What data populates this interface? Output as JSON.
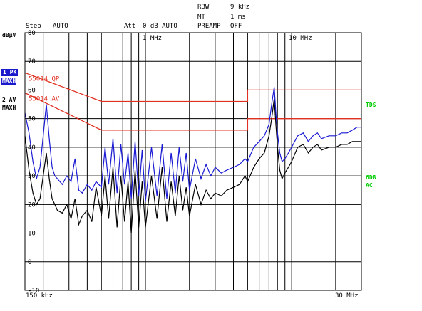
{
  "header": {
    "rbw_label": "RBW",
    "rbw_value": "9 kHz",
    "mt_label": "MT",
    "mt_value": "1 ms",
    "step_label": "Step",
    "step_value": "AUTO",
    "att_label": "Att",
    "att_value": "0 dB AUTO",
    "preamp_label": "PREAMP",
    "preamp_value": "OFF"
  },
  "colors": {
    "grid": "#000000",
    "trace_pk": "#1a1ad4",
    "trace_av": "#000000",
    "limit": "#e03020",
    "limit_text": "#e03020",
    "marker_box": "#1a1acc",
    "side_green": "#00cc00"
  },
  "chart_data": {
    "type": "line",
    "title": "",
    "unit": "dBµV",
    "x_scale": "log",
    "xlim": [
      0.15,
      30
    ],
    "ylim": [
      -10,
      80
    ],
    "grid": true,
    "x_start_label": "150 kHz",
    "x_stop_label": "30 MHz",
    "x_tick_labels": [
      {
        "x": 1,
        "label": "1 MHz"
      },
      {
        "x": 10,
        "label": "10 MHz"
      }
    ],
    "y_ticks": [
      80,
      70,
      60,
      50,
      40,
      30,
      20,
      10,
      0,
      -10
    ],
    "x_gridlines": [
      0.2,
      0.3,
      0.4,
      0.5,
      0.6,
      0.7,
      0.8,
      0.9,
      1,
      2,
      3,
      4,
      5,
      6,
      7,
      8,
      9,
      10,
      20,
      30
    ],
    "traces_label": [
      {
        "num": "1 PK",
        "mode": "MAXH"
      },
      {
        "num": "2 AV",
        "mode": "MAXH"
      }
    ],
    "limit_lines": [
      {
        "name": "55014_QP",
        "x": [
          0.15,
          0.5,
          5,
          5,
          30
        ],
        "y": [
          66,
          56,
          56,
          60,
          60
        ]
      },
      {
        "name": "55014_AV",
        "x": [
          0.15,
          0.5,
          5,
          5,
          30
        ],
        "y": [
          59,
          46,
          46,
          50,
          50
        ]
      }
    ],
    "side_labels": [
      "TDS",
      "6DB",
      "AC"
    ],
    "series": [
      {
        "x": [
          0.15,
          0.16,
          0.17,
          0.18,
          0.19,
          0.2,
          0.21,
          0.22,
          0.23,
          0.24,
          0.25,
          0.27,
          0.29,
          0.31,
          0.33,
          0.35,
          0.37,
          0.4,
          0.43,
          0.46,
          0.5,
          0.53,
          0.56,
          0.6,
          0.64,
          0.68,
          0.72,
          0.76,
          0.8,
          0.85,
          0.9,
          0.95,
          1.0,
          1.1,
          1.2,
          1.3,
          1.4,
          1.5,
          1.6,
          1.7,
          1.8,
          1.9,
          2.0,
          2.2,
          2.4,
          2.6,
          2.8,
          3.0,
          3.3,
          3.6,
          4.0,
          4.4,
          4.8,
          5.0,
          5.5,
          6.0,
          6.5,
          7.0,
          7.3,
          7.6,
          7.8,
          8.0,
          8.3,
          8.6,
          9.0,
          9.5,
          10,
          11,
          12,
          13,
          14,
          15,
          16,
          18,
          20,
          22,
          24,
          26,
          28,
          30
        ],
        "y": [
          52,
          45,
          35,
          29,
          33,
          44,
          55,
          43,
          33,
          30,
          29,
          27,
          30,
          28,
          36,
          25,
          24,
          27,
          25,
          28,
          26,
          40,
          27,
          43,
          24,
          41,
          27,
          38,
          22,
          42,
          23,
          39,
          21,
          40,
          23,
          41,
          22,
          38,
          24,
          40,
          28,
          38,
          25,
          36,
          29,
          34,
          30,
          33,
          31,
          32,
          33,
          34,
          36,
          35,
          40,
          42,
          44,
          48,
          55,
          61,
          52,
          45,
          38,
          35,
          36,
          38,
          40,
          44,
          45,
          42,
          44,
          45,
          43,
          44,
          44,
          45,
          45,
          46,
          47,
          47
        ]
      },
      {
        "x": [
          0.15,
          0.16,
          0.17,
          0.18,
          0.19,
          0.2,
          0.21,
          0.22,
          0.23,
          0.24,
          0.25,
          0.27,
          0.29,
          0.31,
          0.33,
          0.35,
          0.37,
          0.4,
          0.43,
          0.46,
          0.5,
          0.53,
          0.56,
          0.6,
          0.64,
          0.68,
          0.72,
          0.76,
          0.8,
          0.85,
          0.9,
          0.95,
          1.0,
          1.1,
          1.2,
          1.3,
          1.4,
          1.5,
          1.6,
          1.7,
          1.8,
          1.9,
          2.0,
          2.2,
          2.4,
          2.6,
          2.8,
          3.0,
          3.3,
          3.6,
          4.0,
          4.4,
          4.8,
          5.0,
          5.5,
          6.0,
          6.5,
          7.0,
          7.3,
          7.6,
          7.8,
          8.0,
          8.3,
          8.6,
          9.0,
          9.5,
          10,
          11,
          12,
          13,
          14,
          15,
          16,
          18,
          20,
          22,
          24,
          26,
          28,
          30
        ],
        "y": [
          44,
          32,
          24,
          20,
          22,
          30,
          38,
          29,
          22,
          20,
          18,
          17,
          20,
          15,
          22,
          13,
          16,
          18,
          14,
          26,
          16,
          30,
          15,
          33,
          12,
          30,
          14,
          28,
          10,
          32,
          12,
          28,
          12,
          30,
          15,
          33,
          14,
          28,
          16,
          30,
          18,
          26,
          16,
          27,
          20,
          25,
          22,
          24,
          23,
          25,
          26,
          27,
          30,
          28,
          33,
          36,
          38,
          44,
          50,
          57,
          48,
          40,
          32,
          29,
          31,
          33,
          35,
          40,
          41,
          38,
          40,
          41,
          39,
          40,
          40,
          41,
          41,
          42,
          42,
          42
        ]
      }
    ]
  }
}
